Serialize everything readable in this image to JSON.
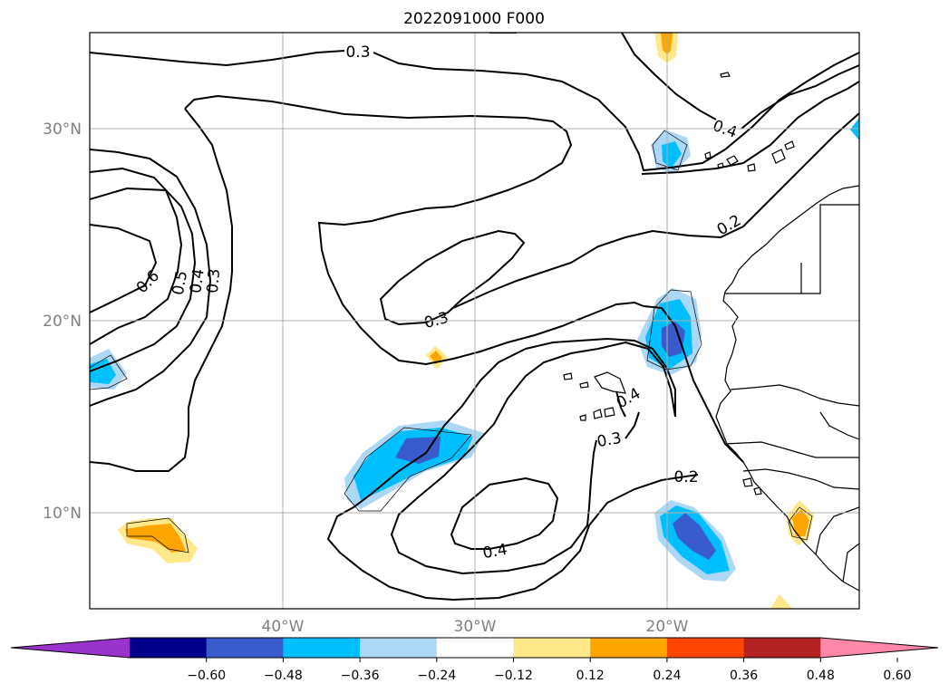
{
  "title": "2022091000 F000",
  "lat_labels": [
    "30°N",
    "20°N",
    "10°N"
  ],
  "lon_labels": [
    "40°W",
    "30°W",
    "20°W"
  ],
  "contour_labels": [
    "0.3",
    "0.4",
    "0.2",
    "0.6",
    "0.5",
    "0.4",
    "0.3",
    "0.3",
    "0.4",
    "0.3",
    "0.2",
    "0.4"
  ],
  "colorbar": {
    "ticks": [
      "−0.60",
      "−0.48",
      "−0.36",
      "−0.24",
      "−0.12",
      "0.12",
      "0.24",
      "0.36",
      "0.48",
      "0.60"
    ],
    "colors": [
      "#9933cc",
      "#00008b",
      "#3a5bcc",
      "#00bfff",
      "#add8f5",
      "#ffffff",
      "#ffe88a",
      "#ffa500",
      "#ff4500",
      "#b22222",
      "#ff88aa"
    ]
  }
}
